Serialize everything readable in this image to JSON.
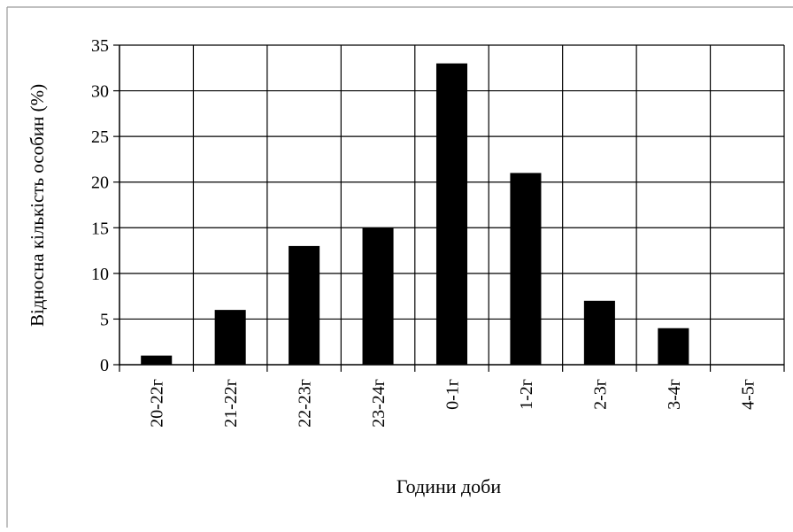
{
  "chart_data": {
    "type": "bar",
    "categories": [
      "20-22г",
      "21-22г",
      "22-23г",
      "23-24г",
      "0-1г",
      "1-2г",
      "2-3г",
      "3-4г",
      "4-5г"
    ],
    "values": [
      1,
      6,
      13,
      15,
      33,
      21,
      7,
      4,
      0
    ],
    "xlabel": "Години доби",
    "ylabel": "Відносна кількість особин (%)",
    "ylim": [
      0,
      35
    ],
    "yticks": [
      "0",
      "5",
      "10",
      "15",
      "20",
      "25",
      "30",
      "35"
    ],
    "grid": true,
    "legend": "none",
    "bar_color": "#000000"
  }
}
